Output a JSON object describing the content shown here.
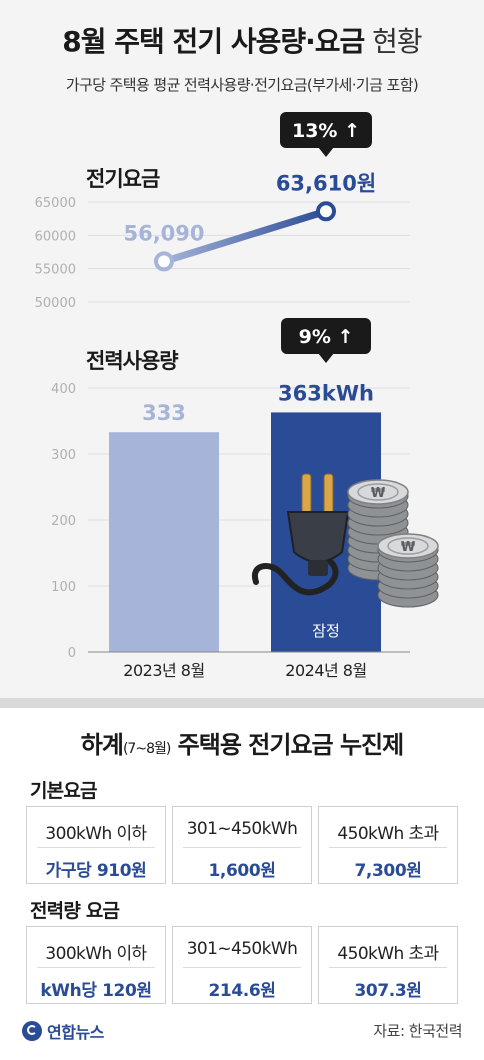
{
  "header": {
    "title_main": "8월 주택 전기 사용량·요금",
    "title_suffix": " 현황",
    "subtitle": "가구당 주택용 평균 전력사용량·전기요금(부가세·기금 포함)"
  },
  "colors": {
    "accent": "#2a4b96",
    "light_accent": "#a5b4d8",
    "badge": "#1a1a1a"
  },
  "chart_data": [
    {
      "type": "line",
      "title": "전기요금",
      "categories": [
        "2023년 8월",
        "2024년 8월"
      ],
      "values": [
        56090,
        63610
      ],
      "data_labels": [
        "56,090",
        "63,610원"
      ],
      "y_ticks": [
        "65000",
        "60000",
        "55000",
        "50000"
      ],
      "ylim": [
        50000,
        65000
      ],
      "grid": true,
      "change_badge": "13% ↑"
    },
    {
      "type": "bar",
      "title": "전력사용량",
      "categories": [
        "2023년 8월",
        "2024년 8월"
      ],
      "values": [
        333,
        363
      ],
      "data_labels": [
        "333",
        "363kWh"
      ],
      "y_ticks": [
        "400",
        "300",
        "200",
        "100",
        "0"
      ],
      "ylim": [
        0,
        400
      ],
      "grid": true,
      "change_badge": "9% ↑",
      "bar_note": "잠정"
    }
  ],
  "tiers": {
    "title_main": "하계",
    "title_small": "(7~8월)",
    "title_rest": " 주택용 전기요금 누진제",
    "base": {
      "label": "기본요금",
      "cells": [
        {
          "head": "300kWh 이하",
          "value": "가구당 910원"
        },
        {
          "head": "301~450kWh",
          "value": "1,600원"
        },
        {
          "head": "450kWh 초과",
          "value": "7,300원"
        }
      ]
    },
    "energy": {
      "label": "전력량 요금",
      "cells": [
        {
          "head": "300kWh 이하",
          "value": "kWh당 120원"
        },
        {
          "head": "301~450kWh",
          "value": "214.6원"
        },
        {
          "head": "450kWh 초과",
          "value": "307.3원"
        }
      ]
    }
  },
  "footer": {
    "logo_text": "연합뉴스",
    "source": "자료: 한국전력"
  }
}
